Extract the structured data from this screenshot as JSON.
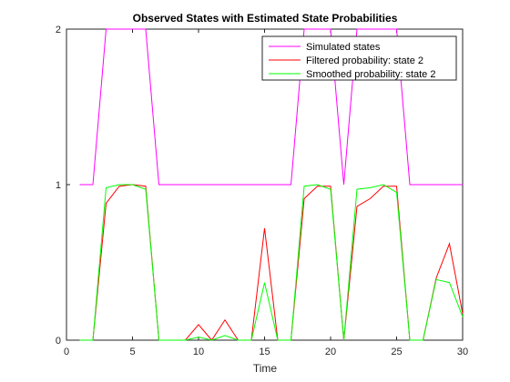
{
  "chart_data": {
    "type": "line",
    "title": "Observed States with Estimated State Probabilities",
    "xlabel": "Time",
    "ylabel": "",
    "xlim": [
      0,
      30
    ],
    "ylim": [
      0,
      2
    ],
    "xticks": [
      0,
      5,
      10,
      15,
      20,
      25,
      30
    ],
    "yticks": [
      0,
      1,
      2
    ],
    "grid": false,
    "legend_position": "top-right",
    "x": [
      1,
      2,
      3,
      4,
      5,
      6,
      7,
      8,
      9,
      10,
      11,
      12,
      13,
      14,
      15,
      16,
      17,
      18,
      19,
      20,
      21,
      22,
      23,
      24,
      25,
      26,
      27,
      28,
      29,
      30
    ],
    "series": [
      {
        "name": "Simulated states",
        "color": "#ff00ff",
        "values": [
          1,
          1,
          2,
          2,
          2,
          2,
          1,
          1,
          1,
          1,
          1,
          1,
          1,
          1,
          1,
          1,
          1,
          2,
          2,
          2,
          1,
          2,
          2,
          2,
          2,
          1,
          1,
          1,
          1,
          1
        ]
      },
      {
        "name": "Filtered probability: state 2",
        "color": "#ff0000",
        "values": [
          0,
          0,
          0.88,
          0.99,
          1.0,
          0.99,
          0,
          0,
          0,
          0.1,
          0,
          0.13,
          0,
          0,
          0.72,
          0,
          0,
          0.91,
          0.99,
          0.99,
          0,
          0.86,
          0.91,
          0.99,
          0.99,
          0,
          0,
          0.4,
          0.62,
          0.17
        ]
      },
      {
        "name": "Smoothed probability: state 2",
        "color": "#00ff00",
        "values": [
          0,
          0,
          0.98,
          1.0,
          1.0,
          0.97,
          0,
          0,
          0,
          0.02,
          0,
          0.03,
          0,
          0,
          0.37,
          0,
          0,
          0.99,
          1.0,
          0.97,
          0,
          0.97,
          0.98,
          1.0,
          0.95,
          0,
          0,
          0.39,
          0.37,
          0.15
        ]
      }
    ]
  }
}
